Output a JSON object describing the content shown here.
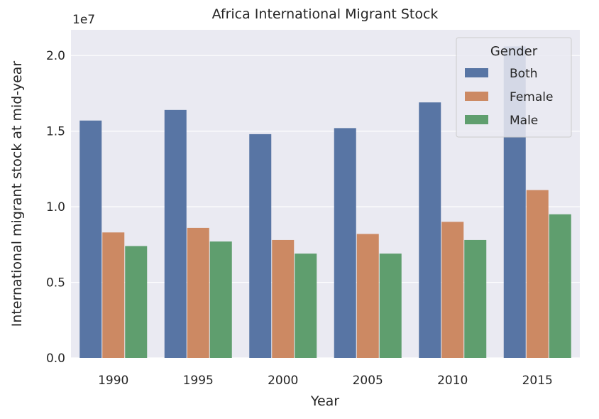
{
  "chart_data": {
    "type": "bar",
    "title": "Africa International Migrant Stock",
    "xlabel": "Year",
    "ylabel": "International migrant stock at mid-year",
    "y_offset_label": "1e7",
    "categories": [
      "1990",
      "1995",
      "2000",
      "2005",
      "2010",
      "2015"
    ],
    "ylim": [
      0,
      2.17
    ],
    "yticks": [
      "0.0",
      "0.5",
      "1.0",
      "1.5",
      "2.0"
    ],
    "ytick_values": [
      0,
      0.5,
      1.0,
      1.5,
      2.0
    ],
    "series": [
      {
        "name": "Both",
        "color": "#5875a4",
        "values": [
          1.57,
          1.64,
          1.48,
          1.52,
          1.69,
          2.06
        ]
      },
      {
        "name": "Female",
        "color": "#cc8963",
        "values": [
          0.83,
          0.86,
          0.78,
          0.82,
          0.9,
          1.11
        ]
      },
      {
        "name": "Male",
        "color": "#5f9e6e",
        "values": [
          0.74,
          0.77,
          0.69,
          0.69,
          0.78,
          0.95
        ]
      }
    ],
    "legend": {
      "title": "Gender",
      "placement": "top-right"
    },
    "grid": true
  }
}
